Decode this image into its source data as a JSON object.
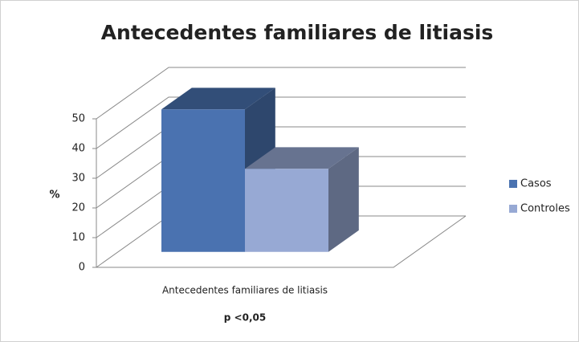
{
  "chart_data": {
    "type": "bar3d",
    "title": "Antecedentes familiares de litiasis",
    "categories": [
      "Antecedentes familiares de litiasis"
    ],
    "y_label": "%",
    "annotation": "p <0,05",
    "series": [
      {
        "name": "Casos",
        "color": "#4a72b0",
        "values": [
          48
        ]
      },
      {
        "name": "Controles",
        "color": "#97a9d4",
        "values": [
          28
        ]
      }
    ],
    "ylim": [
      0,
      50
    ],
    "yticks": [
      0,
      10,
      20,
      30,
      40,
      50
    ],
    "grid": true,
    "legend": "right"
  }
}
